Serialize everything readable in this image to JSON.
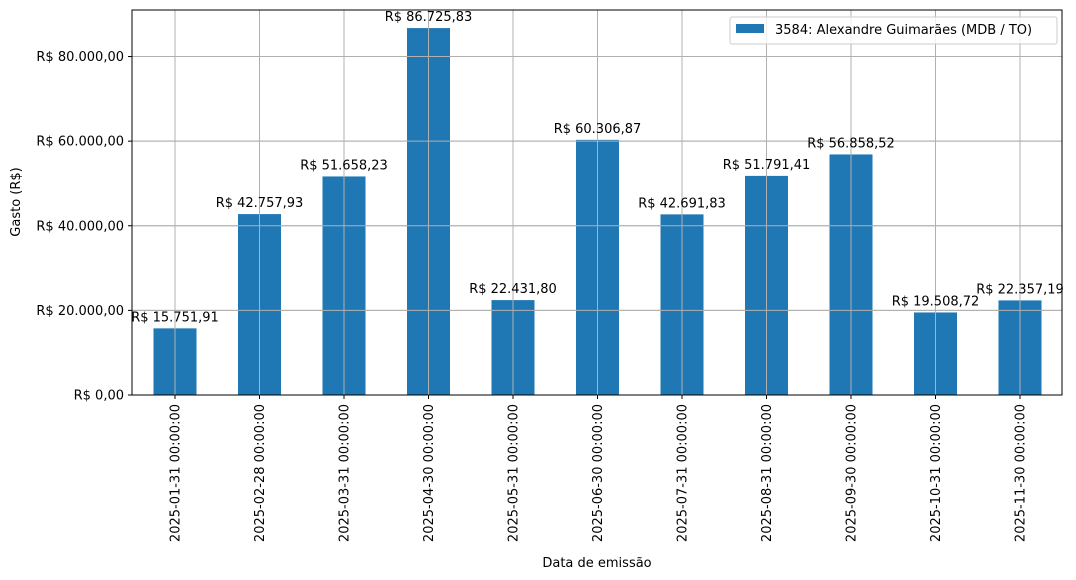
{
  "chart_data": {
    "type": "bar",
    "title": "",
    "xlabel": "Data de emissão",
    "ylabel": "Gasto (R$)",
    "ylim": [
      0,
      91000
    ],
    "grid": true,
    "legend_position": "upper right",
    "categories": [
      "2025-01-31 00:00:00",
      "2025-02-28 00:00:00",
      "2025-03-31 00:00:00",
      "2025-04-30 00:00:00",
      "2025-05-31 00:00:00",
      "2025-06-30 00:00:00",
      "2025-07-31 00:00:00",
      "2025-08-31 00:00:00",
      "2025-09-30 00:00:00",
      "2025-10-31 00:00:00",
      "2025-11-30 00:00:00"
    ],
    "series": [
      {
        "name": "3584: Alexandre Guimarães (MDB / TO)",
        "color": "#1f77b4",
        "values": [
          15751.91,
          42757.93,
          51658.23,
          86725.83,
          22431.8,
          60306.87,
          42691.83,
          51791.41,
          56858.52,
          19508.72,
          22357.19
        ],
        "data_labels": [
          "R$ 15.751,91",
          "R$ 42.757,93",
          "R$ 51.658,23",
          "R$ 86.725,83",
          "R$ 22.431,80",
          "R$ 60.306,87",
          "R$ 42.691,83",
          "R$ 51.791,41",
          "R$ 56.858,52",
          "R$ 19.508,72",
          "R$ 22.357,19"
        ]
      }
    ],
    "y_ticks": [
      {
        "value": 0,
        "label": "R$ 0,00"
      },
      {
        "value": 20000,
        "label": "R$ 20.000,00"
      },
      {
        "value": 40000,
        "label": "R$ 40.000,00"
      },
      {
        "value": 60000,
        "label": "R$ 60.000,00"
      },
      {
        "value": 80000,
        "label": "R$ 80.000,00"
      }
    ]
  },
  "colors": {
    "bar": "#1f77b4",
    "grid": "#b0b0b0",
    "axis": "#000000",
    "legend_border": "#cccccc"
  }
}
